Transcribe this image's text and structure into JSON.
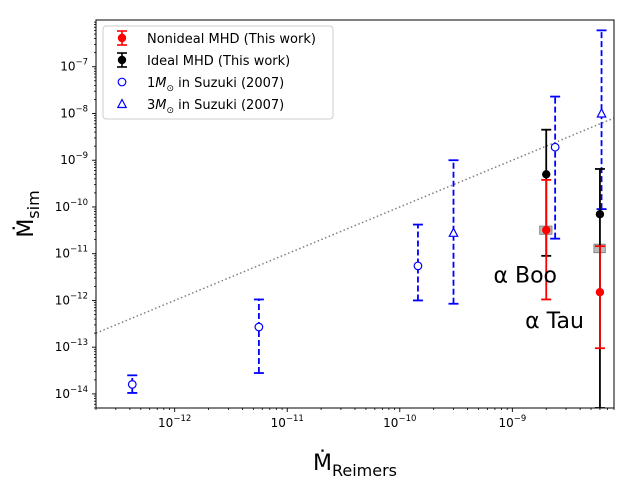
{
  "chart_data": {
    "type": "scatter",
    "xscale": "log",
    "yscale": "log",
    "xlim": [
      2e-13,
      8e-09
    ],
    "ylim": [
      5e-15,
      1e-06
    ],
    "xlabel": "Ṁ",
    "xlabel_sub": "Reimers",
    "ylabel": "Ṁ",
    "ylabel_sub": "sim",
    "x_ticks": [
      {
        "value": 1e-12,
        "mantissa": "10",
        "exp": "−12"
      },
      {
        "value": 1e-11,
        "mantissa": "10",
        "exp": "−11"
      },
      {
        "value": 1e-10,
        "mantissa": "10",
        "exp": "−10"
      },
      {
        "value": 1e-09,
        "mantissa": "10",
        "exp": "−9"
      }
    ],
    "y_ticks": [
      {
        "value": 1e-14,
        "mantissa": "10",
        "exp": "−14"
      },
      {
        "value": 1e-13,
        "mantissa": "10",
        "exp": "−13"
      },
      {
        "value": 1e-12,
        "mantissa": "10",
        "exp": "−12"
      },
      {
        "value": 1e-11,
        "mantissa": "10",
        "exp": "−11"
      },
      {
        "value": 1e-10,
        "mantissa": "10",
        "exp": "−10"
      },
      {
        "value": 1e-09,
        "mantissa": "10",
        "exp": "−9"
      },
      {
        "value": 1e-08,
        "mantissa": "10",
        "exp": "−8"
      },
      {
        "value": 1e-07,
        "mantissa": "10",
        "exp": "−7"
      }
    ],
    "reference_line": {
      "name": "Ṁsim = Ṁ Reimers",
      "style": "dotted",
      "color": "#808080"
    },
    "legend": {
      "placement": "top-left",
      "entries": [
        {
          "label": "Nonideal MHD (This work)",
          "marker": "errorbar-circle-filled",
          "color": "#ff0000"
        },
        {
          "label": "Ideal MHD (This work)",
          "marker": "errorbar-circle-filled",
          "color": "#000000"
        },
        {
          "label_pre": "1",
          "label_m": "M",
          "label_sub": "⊙",
          "label_post": " in Suzuki (2007)",
          "marker": "circle-open",
          "color": "#0000ff"
        },
        {
          "label_pre": "3",
          "label_m": "M",
          "label_sub": "⊙",
          "label_post": " in Suzuki (2007)",
          "marker": "triangle-open",
          "color": "#0000ff"
        }
      ]
    },
    "series": [
      {
        "name": "Nonideal MHD (This work)",
        "color": "#ff0000",
        "marker": "circle-filled",
        "points": [
          {
            "x": 2e-09,
            "y": 3.2e-11,
            "ylo": 1.05e-12,
            "yhi": 3.8e-10
          },
          {
            "x": 6e-09,
            "y": 1.5e-12,
            "ylo": 9.5e-14,
            "yhi": 1.45e-11
          }
        ]
      },
      {
        "name": "Ideal MHD (This work)",
        "color": "#000000",
        "marker": "circle-filled",
        "points": [
          {
            "x": 2e-09,
            "y": 5e-10,
            "ylo": 9e-12,
            "yhi": 4.5e-09
          },
          {
            "x": 6e-09,
            "y": 7e-11,
            "ylo": 5e-15,
            "yhi": 6.5e-10
          }
        ]
      },
      {
        "name": "1M⊙ in Suzuki (2007)",
        "color": "#0000ff",
        "marker": "circle-open",
        "points": [
          {
            "x": 4.2e-13,
            "y": 1.6e-14,
            "ylo": 1.05e-14,
            "yhi": 2.5e-14
          },
          {
            "x": 5.6e-12,
            "y": 2.7e-13,
            "ylo": 2.8e-14,
            "yhi": 1.05e-12
          },
          {
            "x": 1.45e-10,
            "y": 5.5e-12,
            "ylo": 1e-12,
            "yhi": 4.2e-11
          },
          {
            "x": 2.4e-09,
            "y": 1.9e-09,
            "ylo": 2.1e-11,
            "yhi": 2.3e-08
          }
        ]
      },
      {
        "name": "3M⊙ in Suzuki (2007)",
        "color": "#0000ff",
        "marker": "triangle-open",
        "points": [
          {
            "x": 3e-10,
            "y": 2.8e-11,
            "ylo": 8.5e-13,
            "yhi": 1e-09
          },
          {
            "x": 6.2e-09,
            "y": 1e-08,
            "ylo": 9e-11,
            "yhi": 6e-07
          }
        ]
      }
    ],
    "shaded_boxes": [
      {
        "star": "α Boo",
        "x_lo": 1.75e-09,
        "x_hi": 2.25e-09,
        "y_lo": 2.6e-11,
        "y_hi": 3.9e-11,
        "color": "#bbbbbb"
      },
      {
        "star": "α Tau",
        "x_lo": 5.3e-09,
        "x_hi": 6.7e-09,
        "y_lo": 1.05e-11,
        "y_hi": 1.6e-11,
        "color": "#bbbbbb"
      }
    ],
    "annotations": [
      {
        "text": "α Boo",
        "x": 6.8e-10,
        "y": 2.4e-12
      },
      {
        "text": "α Tau",
        "x": 1.3e-09,
        "y": 2.6e-13
      }
    ]
  }
}
